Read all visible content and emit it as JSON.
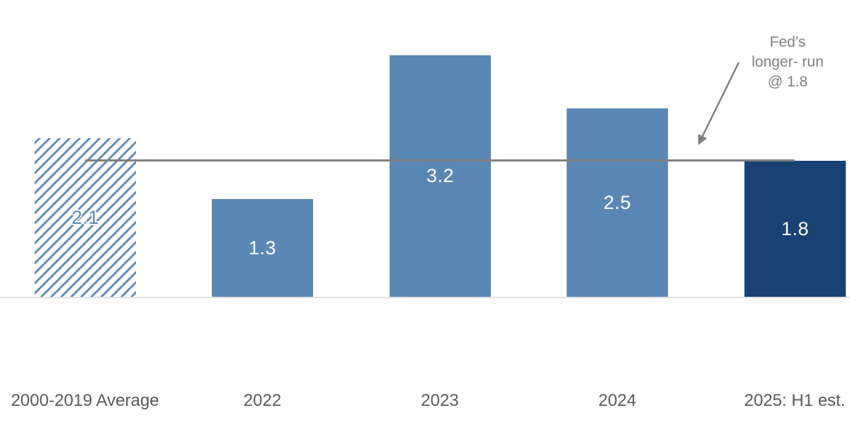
{
  "chart_data": {
    "type": "bar",
    "title": "",
    "xlabel": "",
    "ylabel": "",
    "categories": [
      "2000-2019 Average",
      "2022",
      "2023",
      "2024",
      "2025: H1 est."
    ],
    "values": [
      2.1,
      1.3,
      3.2,
      2.5,
      1.8
    ],
    "value_labels": [
      "2.1",
      "1.3",
      "3.2",
      "2.5",
      "1.8"
    ],
    "bar_styles": [
      "hatched",
      "solid",
      "solid",
      "solid",
      "dark"
    ],
    "ylim": [
      0,
      3.6
    ],
    "grid": false,
    "legend": "none",
    "reference_line": {
      "value": 1.8,
      "label": "Fed's longer- run @ 1.8",
      "spans": "from first bar center to last bar center"
    },
    "annotation": {
      "lines": [
        "Fed's",
        "longer- run",
        "@ 1.8"
      ]
    },
    "colors": {
      "bar": "#5b87b4",
      "dark_bar": "#1a4173",
      "hatch_stripe": "#5b87b4",
      "reference_line": "#808080",
      "arrow": "#808080",
      "annotation_text": "#7f7f7f",
      "axis_label": "#595959",
      "baseline": "#e2e2e2",
      "value_label": "#ffffff"
    }
  }
}
